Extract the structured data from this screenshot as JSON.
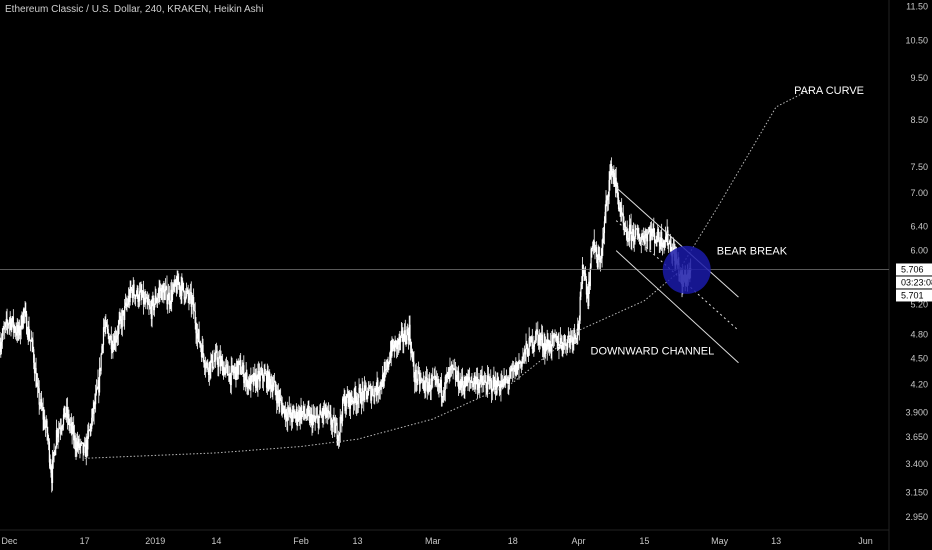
{
  "colors": {
    "background": "#000000",
    "candle": "#ffffff",
    "axis_text": "#c8c8c8",
    "circle": "#1a1aa8",
    "badge_bg": "#ffffff"
  },
  "chart_data": {
    "type": "candlestick",
    "title": "Ethereum Classic / U.S. Dollar, 240, KRAKEN, Heikin Ashi",
    "scale": "log",
    "ylim": [
      2.85,
      11.7
    ],
    "y_ticks": [
      11.5,
      10.5,
      9.5,
      8.5,
      7.5,
      7.0,
      6.4,
      6.0,
      5.706,
      5.2,
      4.8,
      4.5,
      4.2,
      3.9,
      3.65,
      3.4,
      3.15,
      2.95
    ],
    "y_tick_labels": [
      "11.50",
      "10.50",
      "9.50",
      "8.50",
      "7.50",
      "7.00",
      "6.40",
      "6.00",
      "5.706",
      "5.20",
      "4.80",
      "4.50",
      "4.20",
      "3.900",
      "3.650",
      "3.400",
      "3.150",
      "2.950"
    ],
    "x_ticks": [
      {
        "label": "Dec",
        "date": "2018-12-01"
      },
      {
        "label": "17",
        "date": "2018-12-17"
      },
      {
        "label": "2019",
        "date": "2019-01-01"
      },
      {
        "label": "14",
        "date": "2019-01-14"
      },
      {
        "label": "Feb",
        "date": "2019-02-01"
      },
      {
        "label": "13",
        "date": "2019-02-13"
      },
      {
        "label": "Mar",
        "date": "2019-03-01"
      },
      {
        "label": "18",
        "date": "2019-03-18"
      },
      {
        "label": "Apr",
        "date": "2019-04-01"
      },
      {
        "label": "15",
        "date": "2019-04-15"
      },
      {
        "label": "May",
        "date": "2019-05-01"
      },
      {
        "label": "13",
        "date": "2019-05-13"
      },
      {
        "label": "Jun",
        "date": "2019-06-01"
      }
    ],
    "xlim": [
      "2018-11-29",
      "2019-06-06"
    ],
    "current_price": "5.706",
    "countdown": "03:23:08",
    "secondary_price": "5.701",
    "price_path": [
      [
        "2018-11-29",
        4.7
      ],
      [
        "2018-12-01",
        5.0
      ],
      [
        "2018-12-03",
        4.8
      ],
      [
        "2018-12-04",
        5.1
      ],
      [
        "2018-12-06",
        4.6
      ],
      [
        "2018-12-07",
        4.1
      ],
      [
        "2018-12-09",
        3.7
      ],
      [
        "2018-12-10",
        3.3
      ],
      [
        "2018-12-11",
        3.7
      ],
      [
        "2018-12-13",
        3.9
      ],
      [
        "2018-12-15",
        3.6
      ],
      [
        "2018-12-17",
        3.5
      ],
      [
        "2018-12-18",
        3.7
      ],
      [
        "2018-12-20",
        4.2
      ],
      [
        "2018-12-21",
        4.9
      ],
      [
        "2018-12-23",
        4.7
      ],
      [
        "2018-12-25",
        5.0
      ],
      [
        "2018-12-27",
        5.4
      ],
      [
        "2018-12-29",
        5.3
      ],
      [
        "2018-12-31",
        5.1
      ],
      [
        "2019-01-02",
        5.4
      ],
      [
        "2019-01-04",
        5.3
      ],
      [
        "2019-01-06",
        5.5
      ],
      [
        "2019-01-09",
        5.2
      ],
      [
        "2019-01-10",
        4.8
      ],
      [
        "2019-01-12",
        4.4
      ],
      [
        "2019-01-14",
        4.5
      ],
      [
        "2019-01-17",
        4.3
      ],
      [
        "2019-01-19",
        4.4
      ],
      [
        "2019-01-21",
        4.2
      ],
      [
        "2019-01-24",
        4.3
      ],
      [
        "2019-01-26",
        4.2
      ],
      [
        "2019-01-28",
        3.95
      ],
      [
        "2019-01-30",
        3.85
      ],
      [
        "2019-02-01",
        3.9
      ],
      [
        "2019-02-04",
        3.8
      ],
      [
        "2019-02-06",
        3.9
      ],
      [
        "2019-02-08",
        3.75
      ],
      [
        "2019-02-09",
        3.7
      ],
      [
        "2019-02-10",
        4.0
      ],
      [
        "2019-02-12",
        4.05
      ],
      [
        "2019-02-15",
        4.1
      ],
      [
        "2019-02-17",
        4.15
      ],
      [
        "2019-02-19",
        4.3
      ],
      [
        "2019-02-20",
        4.6
      ],
      [
        "2019-02-22",
        4.7
      ],
      [
        "2019-02-24",
        4.85
      ],
      [
        "2019-02-25",
        4.3
      ],
      [
        "2019-02-27",
        4.2
      ],
      [
        "2019-03-01",
        4.2
      ],
      [
        "2019-03-03",
        4.15
      ],
      [
        "2019-03-05",
        4.35
      ],
      [
        "2019-03-07",
        4.2
      ],
      [
        "2019-03-10",
        4.25
      ],
      [
        "2019-03-12",
        4.2
      ],
      [
        "2019-03-14",
        4.2
      ],
      [
        "2019-03-16",
        4.2
      ],
      [
        "2019-03-17",
        4.25
      ],
      [
        "2019-03-19",
        4.4
      ],
      [
        "2019-03-21",
        4.6
      ],
      [
        "2019-03-23",
        4.8
      ],
      [
        "2019-03-25",
        4.65
      ],
      [
        "2019-03-27",
        4.7
      ],
      [
        "2019-03-29",
        4.7
      ],
      [
        "2019-03-31",
        4.8
      ],
      [
        "2019-04-01",
        4.9
      ],
      [
        "2019-04-02",
        5.8
      ],
      [
        "2019-04-03",
        5.3
      ],
      [
        "2019-04-04",
        6.2
      ],
      [
        "2019-04-05",
        5.8
      ],
      [
        "2019-04-06",
        6.0
      ],
      [
        "2019-04-07",
        6.9
      ],
      [
        "2019-04-08",
        7.5
      ],
      [
        "2019-04-09",
        7.1
      ],
      [
        "2019-04-10",
        6.6
      ],
      [
        "2019-04-11",
        6.2
      ],
      [
        "2019-04-12",
        6.3
      ],
      [
        "2019-04-14",
        6.2
      ],
      [
        "2019-04-16",
        6.3
      ],
      [
        "2019-04-18",
        6.2
      ],
      [
        "2019-04-20",
        6.2
      ],
      [
        "2019-04-22",
        5.8
      ],
      [
        "2019-04-23",
        5.5
      ],
      [
        "2019-04-24",
        5.6
      ],
      [
        "2019-04-25",
        5.706
      ]
    ]
  },
  "overlays": {
    "para_curve": {
      "label": "PARA CURVE",
      "points": [
        [
          "2018-12-17",
          3.45
        ],
        [
          "2019-01-14",
          3.5
        ],
        [
          "2019-02-01",
          3.56
        ],
        [
          "2019-02-13",
          3.63
        ],
        [
          "2019-03-01",
          3.83
        ],
        [
          "2019-03-18",
          4.22
        ],
        [
          "2019-04-01",
          4.85
        ],
        [
          "2019-04-15",
          5.25
        ],
        [
          "2019-04-22",
          5.65
        ],
        [
          "2019-05-01",
          6.8
        ],
        [
          "2019-05-13",
          8.8
        ],
        [
          "2019-05-20",
          9.2
        ]
      ]
    },
    "downward_channel": {
      "label": "DOWNWARD CHANNEL",
      "upper": [
        [
          "2019-04-09",
          7.1
        ],
        [
          "2019-05-05",
          5.3
        ]
      ],
      "lower": [
        [
          "2019-04-09",
          6.0
        ],
        [
          "2019-05-05",
          4.45
        ]
      ],
      "mid": [
        [
          "2019-04-09",
          6.5
        ],
        [
          "2019-05-05",
          4.85
        ]
      ]
    },
    "bear_break": {
      "label": "BEAR BREAK",
      "center": [
        "2019-04-24",
        5.7
      ]
    }
  }
}
